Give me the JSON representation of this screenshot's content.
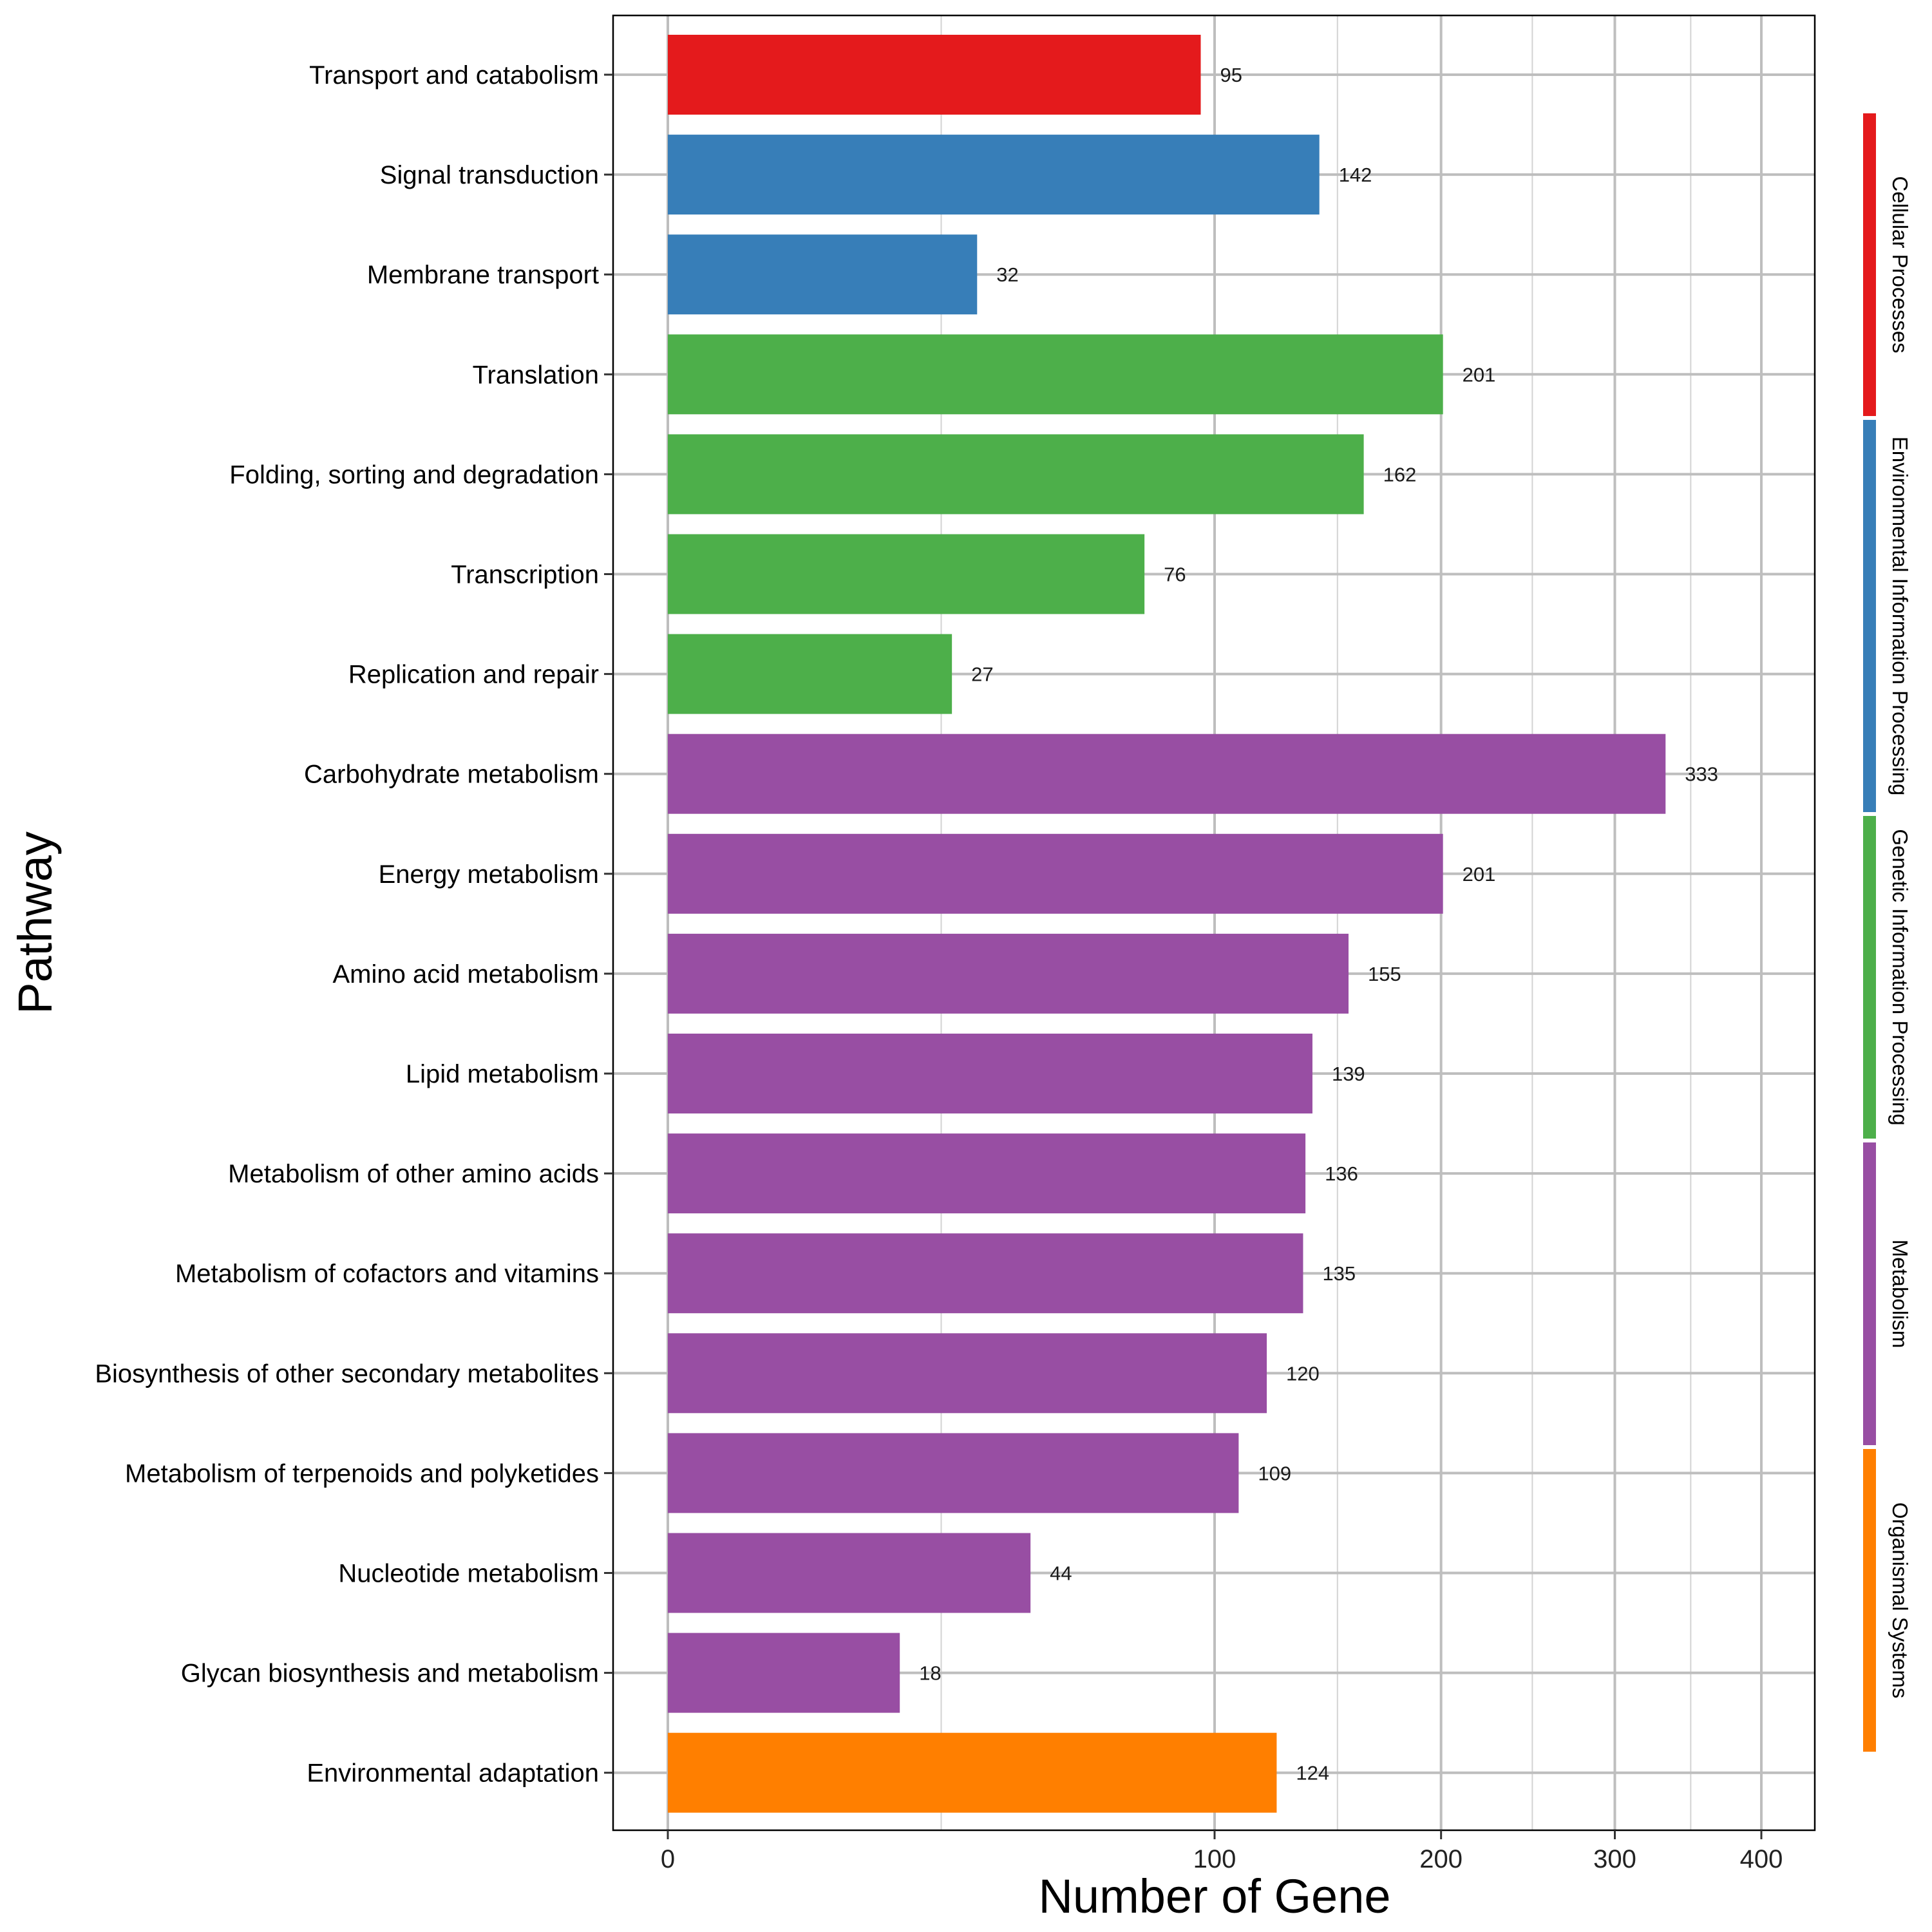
{
  "chart_data": {
    "type": "bar",
    "orientation": "horizontal",
    "xlabel": "Number of Gene",
    "ylabel": "Pathway",
    "x_scale": "sqrt",
    "xlim": [
      0,
      450
    ],
    "xticks": [
      0,
      100,
      200,
      300,
      400
    ],
    "xtick_labels": [
      "0",
      "100",
      "200",
      "300",
      "400"
    ],
    "x_minor_grid": [
      25,
      150,
      250,
      350
    ],
    "grid": true,
    "legend": "right side color strip with category labels",
    "categories": [
      "Transport and catabolism",
      "Signal transduction",
      "Membrane transport",
      "Translation",
      "Folding, sorting and degradation",
      "Transcription",
      "Replication and repair",
      "Carbohydrate metabolism",
      "Energy metabolism",
      "Amino acid metabolism",
      "Lipid metabolism",
      "Metabolism of other amino acids",
      "Metabolism of cofactors and vitamins",
      "Biosynthesis of other secondary metabolites",
      "Metabolism of terpenoids and polyketides",
      "Nucleotide metabolism",
      "Glycan biosynthesis and metabolism",
      "Environmental adaptation"
    ],
    "values": [
      95,
      142,
      32,
      201,
      162,
      76,
      27,
      333,
      201,
      155,
      139,
      136,
      135,
      120,
      109,
      44,
      18,
      124
    ],
    "value_labels": [
      "95",
      "142",
      "32",
      "201",
      "162",
      "76",
      "27",
      "333",
      "201",
      "155",
      "139",
      "136",
      "135",
      "120",
      "109",
      "44",
      "18",
      "124"
    ],
    "groups": [
      "Cellular Processes",
      "Environmental Information Processing",
      "Environmental Information Processing",
      "Genetic Information Processing",
      "Genetic Information Processing",
      "Genetic Information Processing",
      "Genetic Information Processing",
      "Metabolism",
      "Metabolism",
      "Metabolism",
      "Metabolism",
      "Metabolism",
      "Metabolism",
      "Metabolism",
      "Metabolism",
      "Metabolism",
      "Metabolism",
      "Organismal Systems"
    ],
    "group_legend": [
      {
        "name": "Cellular Processes",
        "color": "#E41A1C",
        "rows": 3
      },
      {
        "name": "Environmental Information Processing",
        "color": "#377EB8",
        "rows": 4
      },
      {
        "name": "Genetic Information Processing",
        "color": "#4DAF4A",
        "rows": 3.3
      },
      {
        "name": "Metabolism",
        "color": "#984EA3",
        "rows": 3
      },
      {
        "name": "Organismal Systems",
        "color": "#FF7F00",
        "rows": 3
      }
    ],
    "colors": {
      "Cellular Processes": "#E41A1C",
      "Environmental Information Processing": "#377EB8",
      "Genetic Information Processing": "#4DAF4A",
      "Metabolism": "#984EA3",
      "Organismal Systems": "#FF7F00",
      "grid": "#BEBEBE",
      "axis": "#000000"
    }
  }
}
